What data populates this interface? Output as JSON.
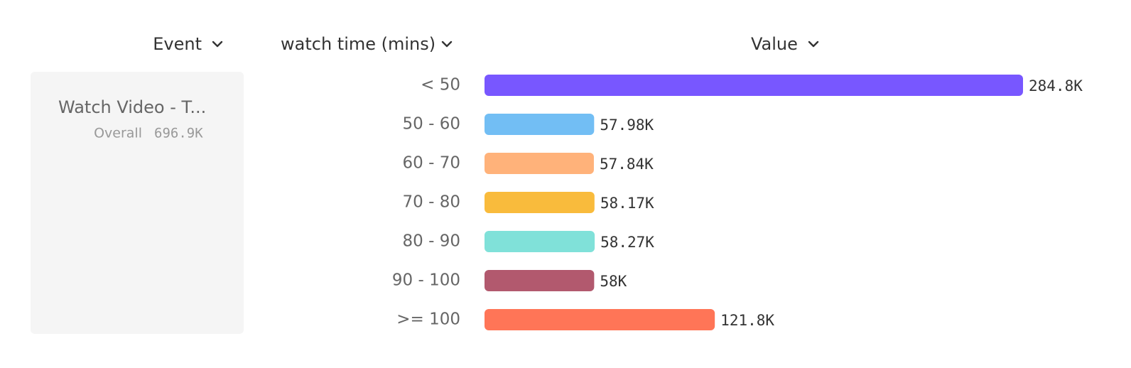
{
  "columns": [
    "Event",
    "watch time (mins)",
    "Value"
  ],
  "event": {
    "name": "Watch Video - T...",
    "overall_label": "Overall",
    "overall_value": "696.9K"
  },
  "chart_data": {
    "type": "bar",
    "orientation": "horizontal",
    "categories": [
      "< 50",
      "50 - 60",
      "60 - 70",
      "70 - 80",
      "80 - 90",
      "90 - 100",
      ">= 100"
    ],
    "values": [
      284800,
      57980,
      57840,
      58170,
      58270,
      58000,
      121800
    ],
    "value_labels": [
      "284.8K",
      "57.98K",
      "57.84K",
      "58.17K",
      "58.27K",
      "58K",
      "121.8K"
    ],
    "colors": [
      "#7857ff",
      "#72bef4",
      "#ffb27a",
      "#f9bb3c",
      "#80e1d9",
      "#b2596e",
      "#ff7557"
    ]
  }
}
